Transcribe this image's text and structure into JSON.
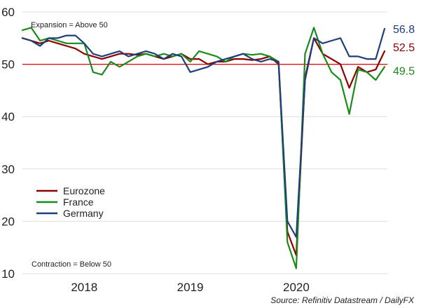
{
  "chart_data": {
    "type": "line",
    "x": [
      "2017-09",
      "2017-10",
      "2017-11",
      "2017-12",
      "2018-01",
      "2018-02",
      "2018-03",
      "2018-04",
      "2018-05",
      "2018-06",
      "2018-07",
      "2018-08",
      "2018-09",
      "2018-10",
      "2018-11",
      "2018-12",
      "2019-01",
      "2019-02",
      "2019-03",
      "2019-04",
      "2019-05",
      "2019-06",
      "2019-07",
      "2019-08",
      "2019-09",
      "2019-10",
      "2019-11",
      "2019-12",
      "2020-01",
      "2020-02",
      "2020-03",
      "2020-04",
      "2020-05",
      "2020-06",
      "2020-07",
      "2020-08",
      "2020-09",
      "2020-10",
      "2020-11",
      "2020-12",
      "2021-01",
      "2021-02"
    ],
    "series": [
      {
        "name": "Eurozone",
        "color": "#8b0000",
        "values": [
          55.0,
          54.5,
          54.0,
          54.5,
          54.0,
          53.5,
          53.0,
          52.0,
          51.5,
          51.0,
          51.5,
          52.0,
          52.0,
          51.8,
          52.0,
          51.5,
          51.0,
          51.5,
          52.0,
          51.0,
          51.0,
          50.0,
          50.5,
          50.5,
          51.0,
          51.0,
          50.8,
          51.0,
          51.5,
          50.0,
          18.0,
          13.5,
          47.5,
          55.0,
          52.0,
          51.0,
          50.0,
          45.5,
          49.5,
          48.5,
          49.0,
          52.5
        ]
      },
      {
        "name": "France",
        "color": "#1a8a1a",
        "values": [
          56.5,
          57.0,
          54.5,
          55.0,
          54.5,
          54.0,
          54.0,
          54.0,
          48.5,
          48.0,
          50.5,
          49.5,
          50.5,
          51.5,
          52.0,
          51.5,
          52.0,
          51.5,
          52.0,
          50.5,
          52.5,
          52.0,
          51.5,
          50.5,
          51.5,
          52.0,
          51.8,
          52.0,
          51.5,
          50.5,
          16.0,
          11.0,
          52.0,
          57.0,
          52.0,
          48.5,
          47.0,
          40.5,
          49.0,
          48.5,
          47.0,
          49.5
        ]
      },
      {
        "name": "Germany",
        "color": "#1f3f7a",
        "values": [
          55.0,
          54.5,
          53.5,
          55.0,
          55.0,
          55.5,
          55.5,
          54.0,
          52.0,
          51.5,
          52.0,
          52.5,
          51.5,
          52.0,
          52.5,
          52.0,
          51.0,
          52.0,
          51.5,
          48.5,
          49.0,
          49.5,
          50.5,
          51.0,
          51.5,
          52.0,
          51.0,
          50.5,
          51.0,
          50.5,
          20.0,
          17.0,
          47.0,
          55.0,
          54.0,
          54.5,
          55.0,
          51.5,
          51.5,
          51.0,
          51.0,
          56.8
        ]
      }
    ],
    "ylim": [
      10,
      60
    ],
    "yticks": [
      "10",
      "20",
      "30",
      "40",
      "50",
      "60"
    ],
    "xticks": [
      {
        "label": "2018",
        "x": "2018-04"
      },
      {
        "label": "2019",
        "x": "2019-04"
      },
      {
        "label": "2020",
        "x": "2020-04"
      }
    ],
    "reference_line": {
      "value": 50,
      "color": "#e00000"
    },
    "annotations": {
      "expansion": "Expansion = Above 50",
      "contraction": "Contraction = Below 50"
    },
    "end_labels": [
      {
        "series": "Germany",
        "text": "56.8",
        "color": "#1f3f7a"
      },
      {
        "series": "Eurozone",
        "text": "52.5",
        "color": "#8b0000"
      },
      {
        "series": "France",
        "text": "49.5",
        "color": "#1a8a1a"
      }
    ],
    "legend_position": "lower-left",
    "grid": "horizontal",
    "source": "Source: Refinitiv Datastream / DailyFX"
  }
}
